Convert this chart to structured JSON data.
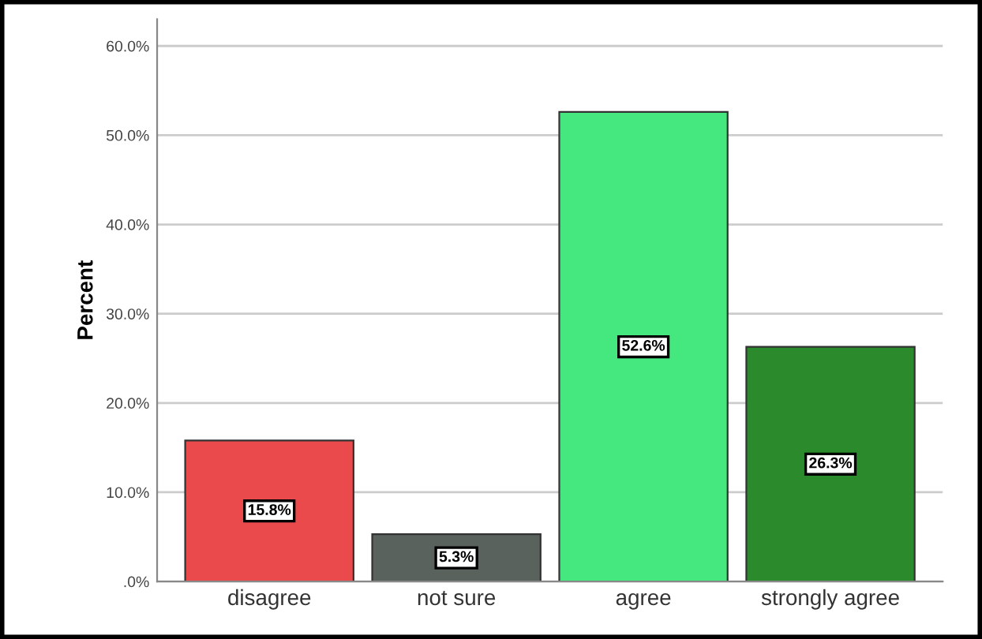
{
  "chart_data": {
    "type": "bar",
    "ylabel": "Percent",
    "categories": [
      "disagree",
      "not sure",
      "agree",
      "strongly agree"
    ],
    "values": [
      15.8,
      5.3,
      52.6,
      26.3
    ],
    "colors": [
      "#ea4a4c",
      "#5a625e",
      "#44e87e",
      "#2b8a2b"
    ],
    "value_labels": [
      "15.8%",
      "5.3%",
      "52.6%",
      "26.3%"
    ],
    "ylim": [
      0,
      63
    ],
    "yticks": [
      {
        "value": 0,
        "label": ".0%"
      },
      {
        "value": 10,
        "label": "10.0%"
      },
      {
        "value": 20,
        "label": "20.0%"
      },
      {
        "value": 30,
        "label": "30.0%"
      },
      {
        "value": 40,
        "label": "40.0%"
      },
      {
        "value": 50,
        "label": "50.0%"
      },
      {
        "value": 60,
        "label": "60.0%"
      }
    ],
    "grid": "y"
  }
}
